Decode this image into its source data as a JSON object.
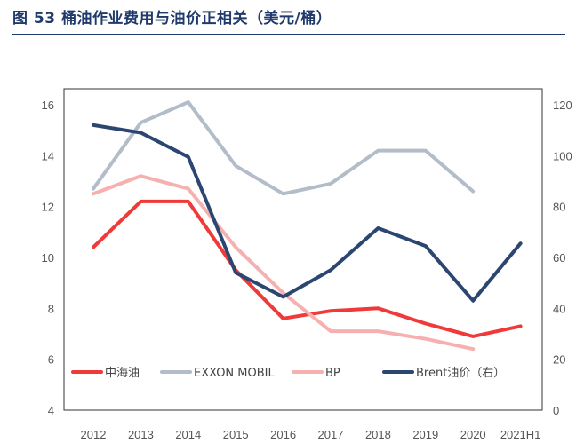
{
  "header": {
    "title": "图 53 桶油作业费用与油价正相关（美元/桶）"
  },
  "chart_data": {
    "type": "line",
    "categories": [
      "2012",
      "2013",
      "2014",
      "2015",
      "2016",
      "2017",
      "2018",
      "2019",
      "2020",
      "2021H1"
    ],
    "y_left": {
      "min": 4,
      "max": 16,
      "ticks": [
        "4",
        "6",
        "8",
        "10",
        "12",
        "14",
        "16"
      ]
    },
    "y_right": {
      "min": 0,
      "max": 120,
      "ticks": [
        "0",
        "20",
        "40",
        "60",
        "80",
        "100",
        "120"
      ]
    },
    "series": [
      {
        "name": "中海油",
        "axis": "left",
        "color": "#f03a3a",
        "width": 4,
        "values": [
          10.4,
          12.2,
          12.2,
          9.5,
          7.6,
          7.9,
          8.0,
          7.4,
          6.9,
          7.3
        ]
      },
      {
        "name": "EXXON MOBIL",
        "axis": "left",
        "color": "#b3bcc9",
        "width": 4,
        "values": [
          12.7,
          15.3,
          16.1,
          13.6,
          12.5,
          12.9,
          14.2,
          14.2,
          12.6,
          null
        ]
      },
      {
        "name": "BP",
        "axis": "left",
        "color": "#f7b0b0",
        "width": 4,
        "values": [
          12.5,
          13.2,
          12.7,
          10.4,
          8.6,
          7.1,
          7.1,
          6.8,
          6.4,
          null
        ]
      },
      {
        "name": "Brent油价（右）",
        "axis": "right",
        "color": "#2c4672",
        "width": 4,
        "values": [
          112,
          109,
          99.5,
          54,
          44.5,
          55,
          71.5,
          64.5,
          43,
          65.5
        ]
      }
    ],
    "legend": {
      "placement": "bottom-inside"
    },
    "grid": false
  }
}
